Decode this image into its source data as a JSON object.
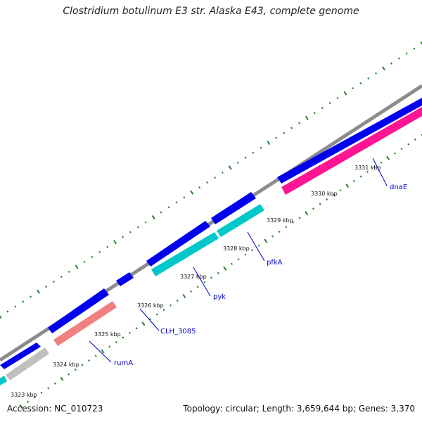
{
  "title": "Clostridium botulinum E3 str. Alaska E43, complete genome",
  "accession_text": "Accession: NC_010723",
  "summary_text": "Topology: circular; Length: 3,659,644 bp; Genes: 3,370",
  "colors": {
    "backbone": "#8c8c8c",
    "forward_gene": "#0000ee",
    "reverse_rRNA_like": "#f08080",
    "reverse_cyan": "#00c8c8",
    "reverse_magenta": "#ff1493",
    "reverse_gray": "#c0c0c0",
    "tick": "#2a7f2a",
    "gene_label": "#0000cc"
  },
  "scale_ticks": [
    {
      "label": "3323 kbp"
    },
    {
      "label": "3324 kbp"
    },
    {
      "label": "3325 kbp"
    },
    {
      "label": "3326 kbp"
    },
    {
      "label": "3327 kbp"
    },
    {
      "label": "3328 kbp"
    },
    {
      "label": "3329 kbp"
    },
    {
      "label": "3330 kbp"
    },
    {
      "label": "3331 kbp"
    }
  ],
  "genes": [
    {
      "name": "rumA"
    },
    {
      "name": "CLH_3085"
    },
    {
      "name": "pyk"
    },
    {
      "name": "pfkA"
    },
    {
      "name": "dnaE"
    }
  ]
}
